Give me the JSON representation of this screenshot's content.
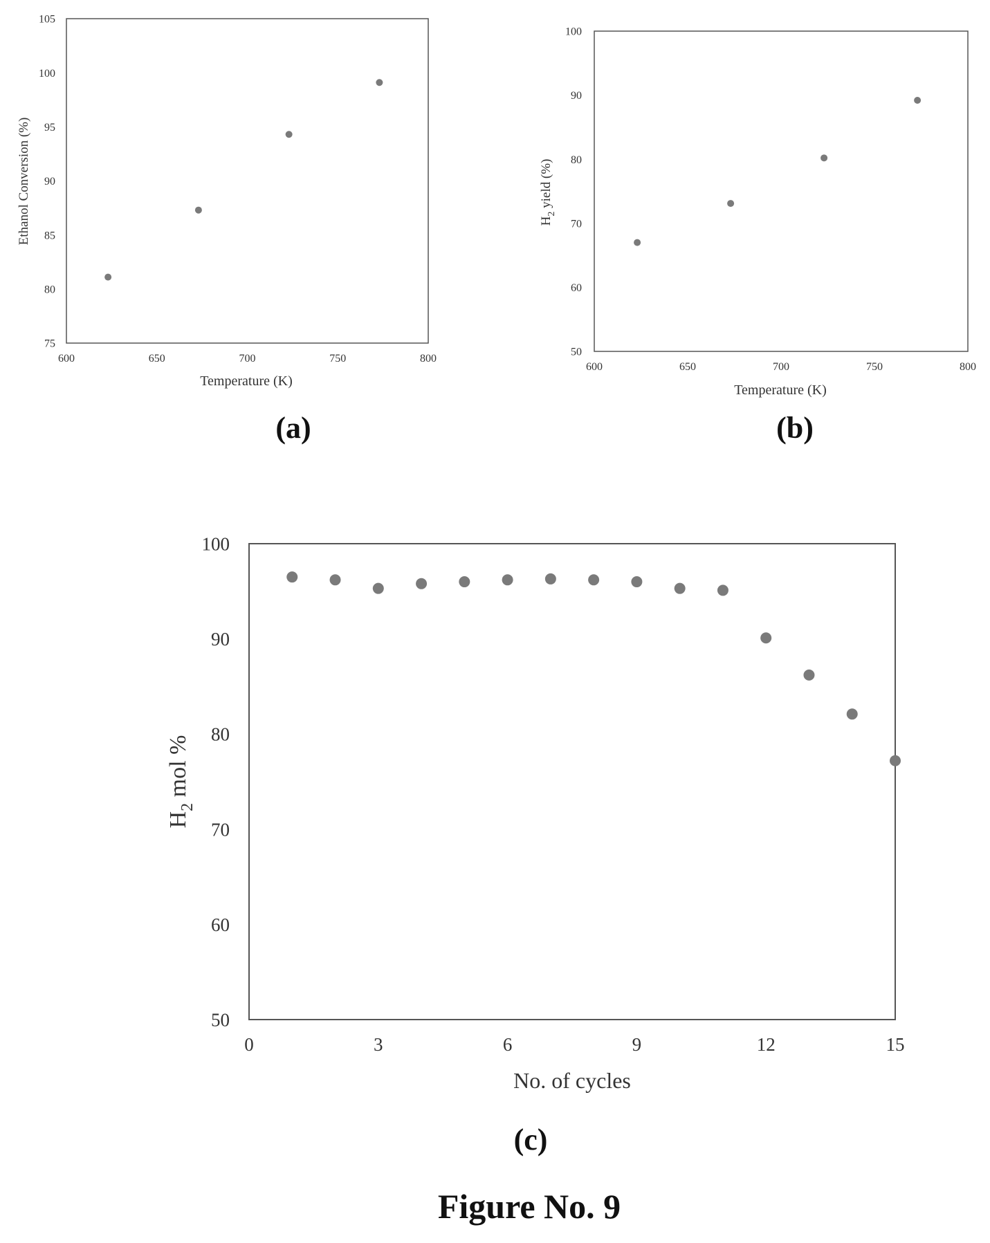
{
  "figure_title": "Figure No. 9",
  "chart_data": [
    {
      "id": "a",
      "panel_label": "(a)",
      "type": "scatter",
      "title": "",
      "xlabel": "Temperature  (K)",
      "ylabel": "Ethanol  Conversion  (%)",
      "xlim": [
        600,
        800
      ],
      "ylim": [
        75,
        105
      ],
      "xticks": [
        600,
        650,
        700,
        750,
        800
      ],
      "yticks": [
        75,
        80,
        85,
        90,
        95,
        100,
        105
      ],
      "grid": false,
      "x": [
        623,
        673,
        723,
        773
      ],
      "y": [
        81.1,
        87.3,
        94.3,
        99.1
      ],
      "marker_color": "#7a7a7a"
    },
    {
      "id": "b",
      "panel_label": "(b)",
      "type": "scatter",
      "title": "",
      "xlabel": "Temperature  (K)",
      "ylabel_main": "H",
      "ylabel_sub": "2",
      "ylabel_rest": " yield  (%)",
      "xlim": [
        600,
        800
      ],
      "ylim": [
        50,
        100
      ],
      "xticks": [
        600,
        650,
        700,
        750,
        800
      ],
      "yticks": [
        50,
        60,
        70,
        80,
        90,
        100
      ],
      "grid": false,
      "x": [
        623,
        673,
        723,
        773
      ],
      "y": [
        67.0,
        73.1,
        80.2,
        89.2
      ],
      "marker_color": "#7a7a7a"
    },
    {
      "id": "c",
      "panel_label": "(c)",
      "type": "scatter",
      "title": "",
      "xlabel": "No. of cycles",
      "ylabel_main": "H",
      "ylabel_sub": "2",
      "ylabel_rest": " mol %",
      "xlim": [
        0,
        15
      ],
      "ylim": [
        50,
        100
      ],
      "xticks": [
        0,
        3,
        6,
        9,
        12,
        15
      ],
      "yticks": [
        50,
        60,
        70,
        80,
        90,
        100
      ],
      "grid": false,
      "x": [
        1,
        2,
        3,
        4,
        5,
        6,
        7,
        8,
        9,
        10,
        11,
        12,
        13,
        14,
        15
      ],
      "y": [
        96.5,
        96.2,
        95.3,
        95.8,
        96.0,
        96.2,
        96.3,
        96.2,
        96.0,
        95.3,
        95.1,
        90.1,
        86.2,
        82.1,
        77.2
      ],
      "marker_color": "#7a7a7a"
    }
  ]
}
